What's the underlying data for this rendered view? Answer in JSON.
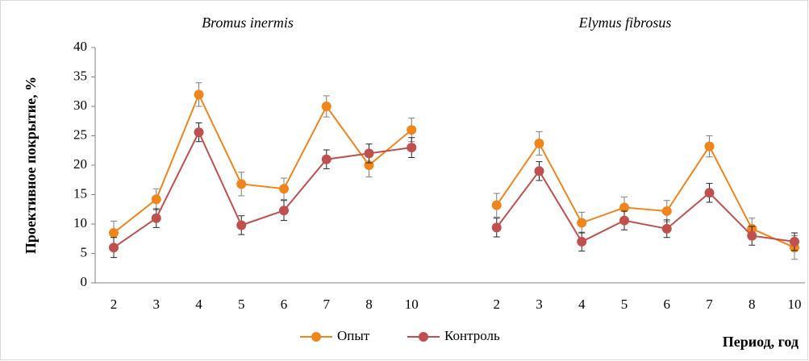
{
  "chart_data": {
    "type": "line",
    "annotations": [
      "Bromus inermis",
      "Elymus fibrosus"
    ],
    "y_label": "Проективное покрытие, %",
    "x_label": "Период, год",
    "categories": [
      "2",
      "3",
      "4",
      "5",
      "6",
      "7",
      "8",
      "10",
      null,
      "2",
      "3",
      "4",
      "5",
      "6",
      "7",
      "8",
      "10"
    ],
    "series": [
      {
        "name": "Опыт",
        "color": "#f0851c",
        "values": [
          8.5,
          14.2,
          32,
          16.8,
          16,
          30,
          20,
          26,
          null,
          13.2,
          23.7,
          10.2,
          12.8,
          12.2,
          23.2,
          9.2,
          6
        ],
        "errors": [
          2,
          1.8,
          2,
          2,
          1.8,
          1.8,
          2,
          2,
          null,
          2,
          2,
          1.8,
          1.8,
          1.8,
          1.8,
          1.8,
          2
        ]
      },
      {
        "name": "Контроль",
        "color": "#c0504d",
        "values": [
          6,
          11,
          25.6,
          9.8,
          12.3,
          21,
          22,
          23,
          null,
          9.4,
          19,
          7,
          10.6,
          9.2,
          15.3,
          8,
          7
        ],
        "errors": [
          1.7,
          1.6,
          1.6,
          1.6,
          1.7,
          1.6,
          1.6,
          1.7,
          null,
          1.6,
          1.6,
          1.6,
          1.6,
          1.5,
          1.6,
          1.6,
          1.5
        ]
      }
    ],
    "ylim": [
      0,
      40
    ],
    "yticks": [
      0,
      5,
      10,
      15,
      20,
      25,
      30,
      35,
      40
    ],
    "legend": "bottom"
  }
}
